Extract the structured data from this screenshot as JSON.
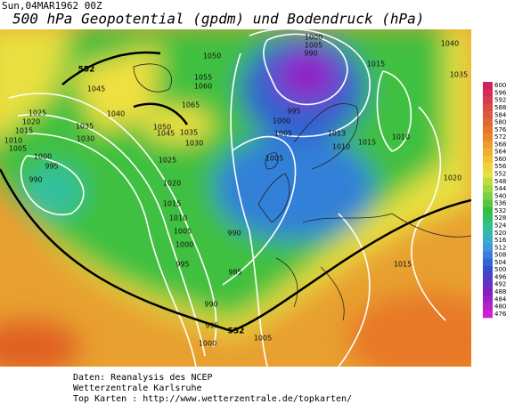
{
  "header": {
    "timestamp": "Sun,04MAR1962 00Z",
    "title": "500 hPa Geopotential (gpdm) und Bodendruck (hPa)"
  },
  "colorbar": {
    "ticks": [
      600,
      596,
      592,
      588,
      584,
      580,
      576,
      572,
      568,
      564,
      560,
      556,
      552,
      548,
      544,
      540,
      536,
      532,
      528,
      524,
      520,
      516,
      512,
      508,
      504,
      500,
      496,
      492,
      488,
      484,
      480,
      476
    ]
  },
  "map": {
    "contour_labels": [
      552,
      552,
      1045,
      1040,
      1035,
      1030,
      1025,
      1020,
      1015,
      1010,
      1005,
      1000,
      995,
      990,
      1050,
      1055,
      1060,
      1065,
      1050,
      1045,
      1035,
      1030,
      1025,
      1020,
      1015,
      1010,
      1005,
      1000,
      995,
      990,
      985,
      990,
      995,
      1000,
      1005,
      1000,
      1005,
      990,
      995,
      1000,
      1005,
      1005,
      1013,
      1010,
      1015,
      1010,
      1015,
      1040,
      1035,
      1020,
      1015
    ]
  },
  "footer": {
    "lines": [
      "Daten: Reanalysis des NCEP",
      "Wetterzentrale Karlsruhe",
      "Top Karten  :  http://www.wetterzentrale.de/topkarten/"
    ]
  }
}
